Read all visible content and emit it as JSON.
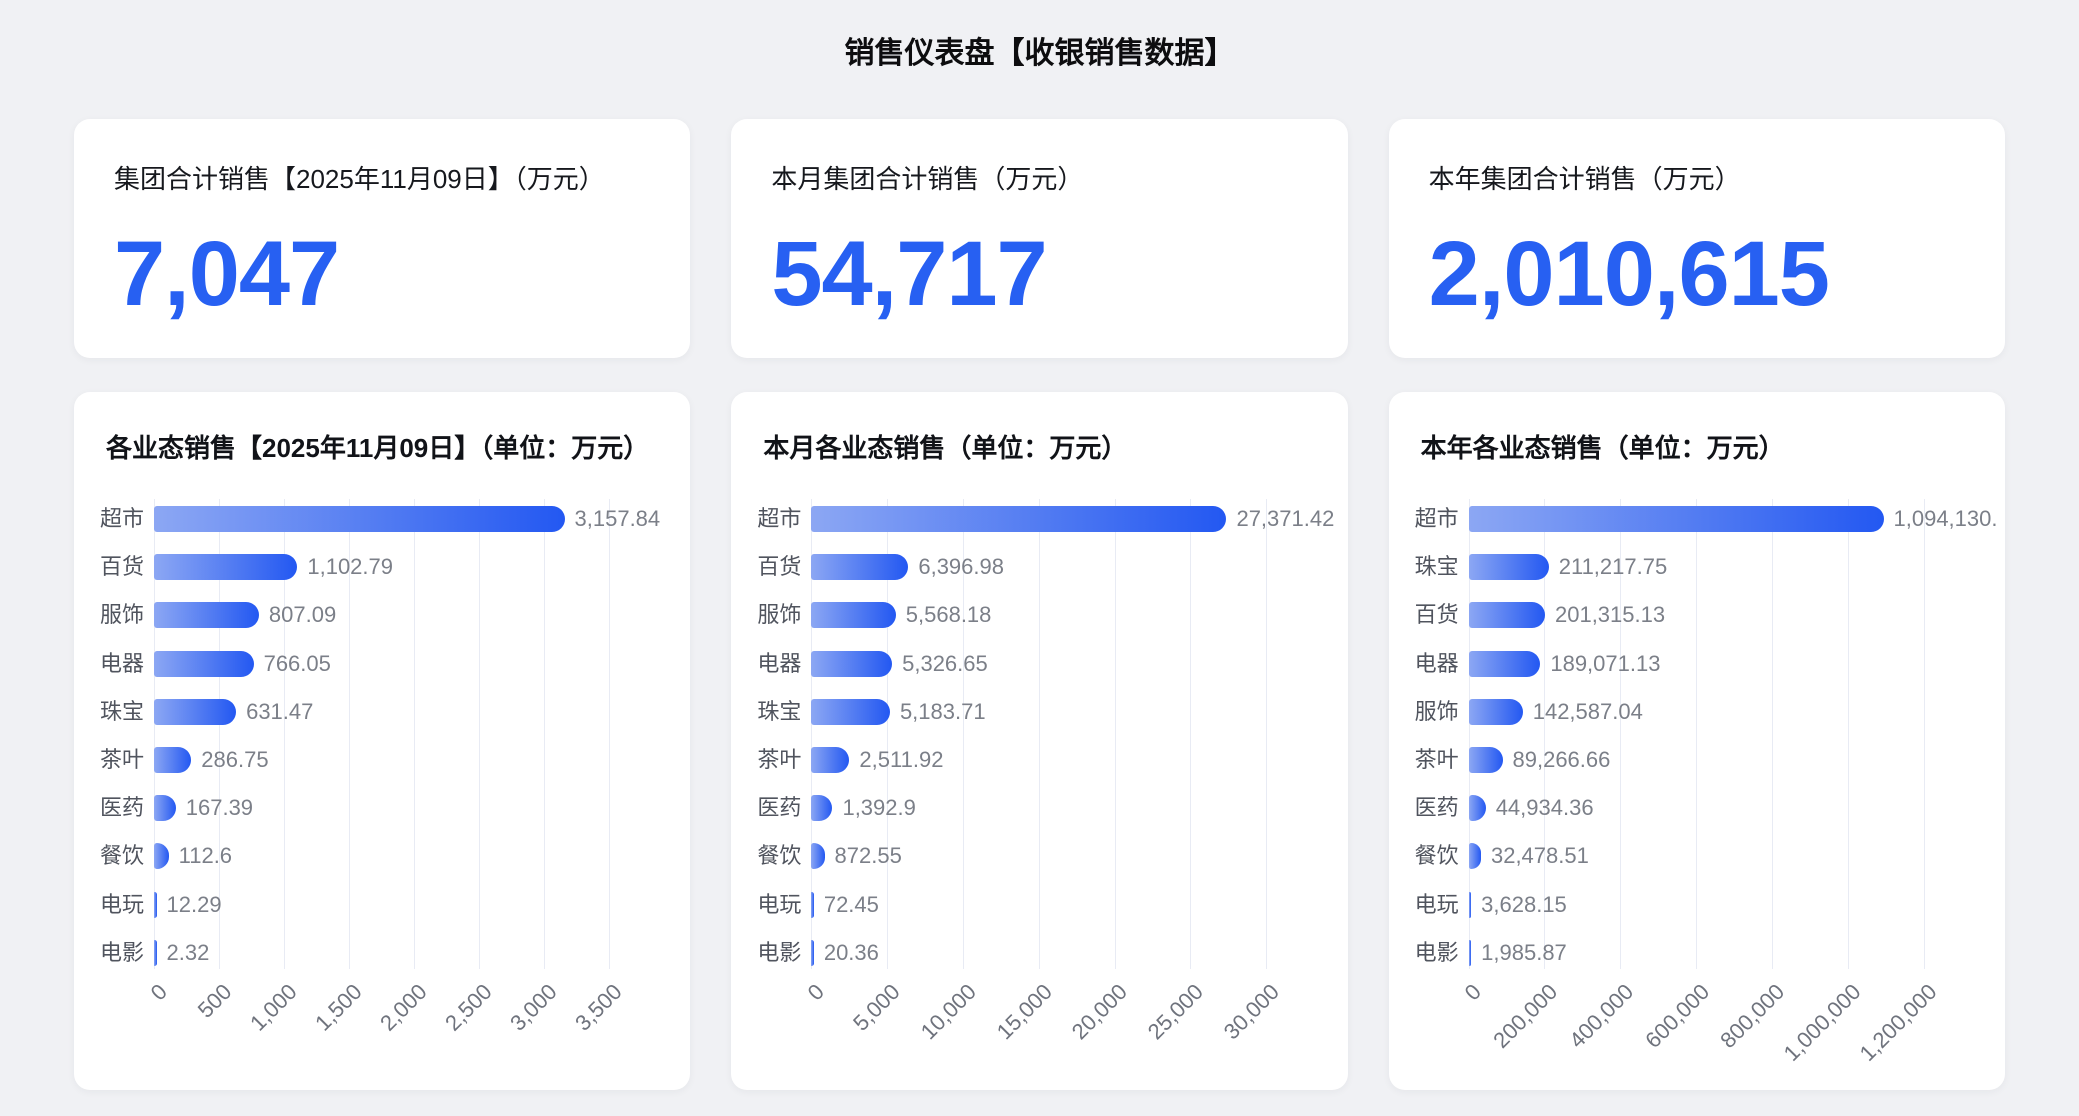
{
  "page_title": "销售仪表盘【收银销售数据】",
  "kpis": [
    {
      "label": "集团合计销售【2025年11月09日】（万元）",
      "value": "7,047"
    },
    {
      "label": "本月集团合计销售（万元）",
      "value": "54,717"
    },
    {
      "label": "本年集团合计销售（万元）",
      "value": "2,010,615"
    }
  ],
  "chart_data": [
    {
      "type": "bar",
      "orientation": "horizontal",
      "title": "各业态销售【2025年11月09日】（单位：万元）",
      "categories": [
        "超市",
        "百货",
        "服饰",
        "电器",
        "珠宝",
        "茶叶",
        "医药",
        "餐饮",
        "电玩",
        "电影"
      ],
      "values": [
        3157.84,
        1102.79,
        807.09,
        766.05,
        631.47,
        286.75,
        167.39,
        112.6,
        12.29,
        2.32
      ],
      "value_labels": [
        "3,157.84",
        "1,102.79",
        "807.09",
        "766.05",
        "631.47",
        "286.75",
        "167.39",
        "112.6",
        "12.29",
        "2.32"
      ],
      "xlim": [
        0,
        3500
      ],
      "x_ticks": [
        "0",
        "500",
        "1,000",
        "1,500",
        "2,000",
        "2,500",
        "3,000",
        "3,500"
      ],
      "grid": true,
      "legend": "none"
    },
    {
      "type": "bar",
      "orientation": "horizontal",
      "title": "本月各业态销售（单位：万元）",
      "categories": [
        "超市",
        "百货",
        "服饰",
        "电器",
        "珠宝",
        "茶叶",
        "医药",
        "餐饮",
        "电玩",
        "电影"
      ],
      "values": [
        27371.42,
        6396.98,
        5568.18,
        5326.65,
        5183.71,
        2511.92,
        1392.9,
        872.55,
        72.45,
        20.36
      ],
      "value_labels": [
        "27,371.42",
        "6,396.98",
        "5,568.18",
        "5,326.65",
        "5,183.71",
        "2,511.92",
        "1,392.9",
        "872.55",
        "72.45",
        "20.36"
      ],
      "xlim": [
        0,
        30000
      ],
      "x_ticks": [
        "0",
        "5,000",
        "10,000",
        "15,000",
        "20,000",
        "25,000",
        "30,000"
      ],
      "grid": true,
      "legend": "none"
    },
    {
      "type": "bar",
      "orientation": "horizontal",
      "title": "本年各业态销售（单位：万元）",
      "categories": [
        "超市",
        "珠宝",
        "百货",
        "电器",
        "服饰",
        "茶叶",
        "医药",
        "餐饮",
        "电玩",
        "电影"
      ],
      "values": [
        1094130,
        211217.75,
        201315.13,
        189071.13,
        142587.04,
        89266.66,
        44934.36,
        32478.51,
        3628.15,
        1985.87
      ],
      "value_labels": [
        "1,094,130.",
        "211,217.75",
        "201,315.13",
        "189,071.13",
        "142,587.04",
        "89,266.66",
        "44,934.36",
        "32,478.51",
        "3,628.15",
        "1,985.87"
      ],
      "xlim": [
        0,
        1200000
      ],
      "x_ticks": [
        "0",
        "200,000",
        "400,000",
        "600,000",
        "800,000",
        "1,000,000",
        "1,200,000"
      ],
      "grid": true,
      "legend": "none"
    }
  ],
  "colors": {
    "page_background": "#f0f1f4",
    "card_background": "#ffffff",
    "kpi_value_blue": "#2760f2",
    "bar_gradient_start": "#8ca7f3",
    "bar_gradient_end": "#2358f2",
    "gridline": "#e8ebf4"
  }
}
